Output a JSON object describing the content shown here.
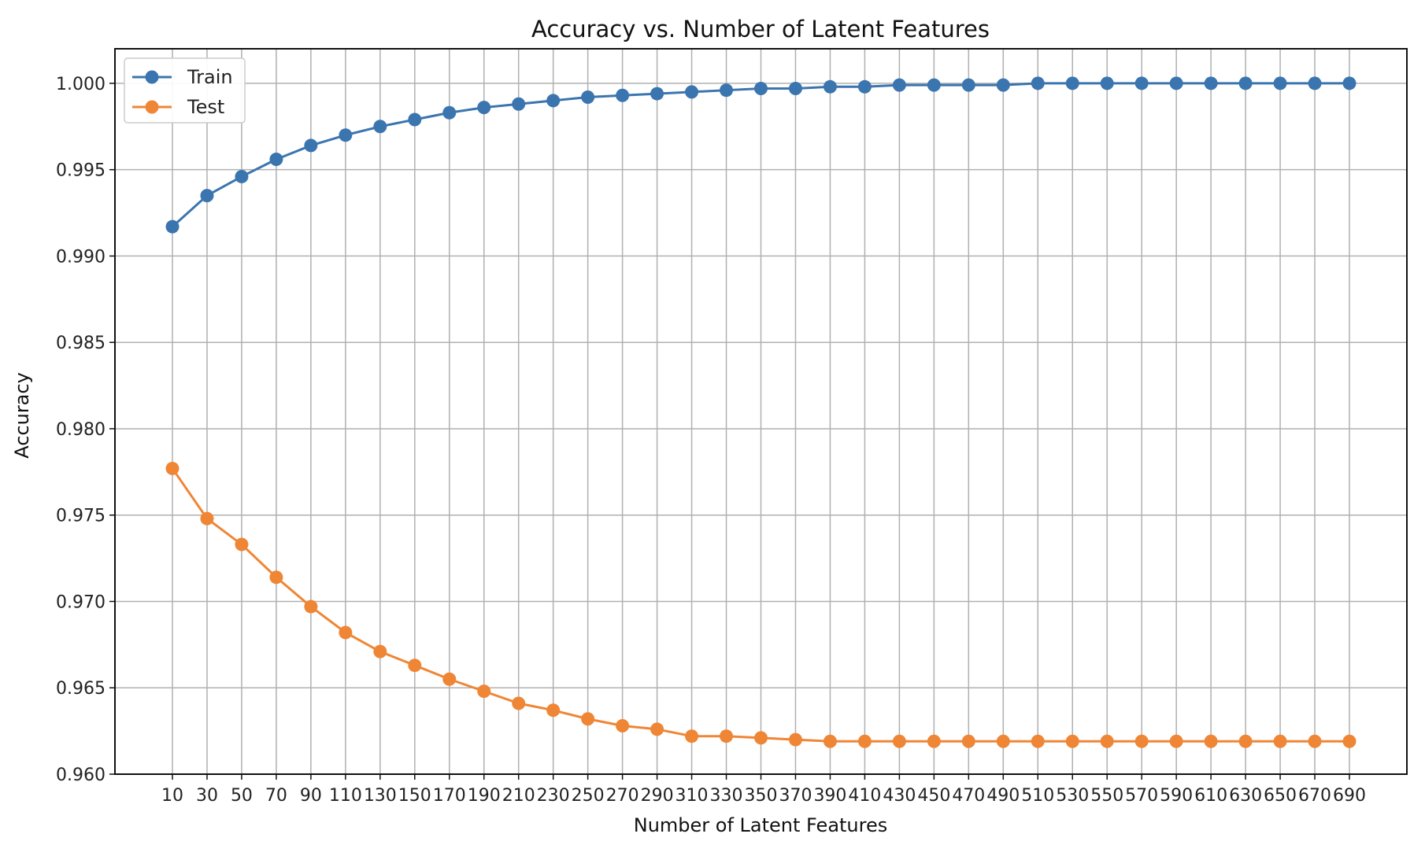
{
  "chart_data": {
    "type": "line",
    "title": "Accuracy vs. Number of Latent Features",
    "xlabel": "Number of Latent Features",
    "ylabel": "Accuracy",
    "x": [
      10,
      30,
      50,
      70,
      90,
      110,
      130,
      150,
      170,
      190,
      210,
      230,
      250,
      270,
      290,
      310,
      330,
      350,
      370,
      390,
      410,
      430,
      450,
      470,
      490,
      510,
      530,
      550,
      570,
      590,
      610,
      630,
      650,
      670,
      690
    ],
    "ylim": [
      0.96,
      1.002
    ],
    "yticks": [
      0.96,
      0.965,
      0.97,
      0.975,
      0.98,
      0.985,
      0.99,
      0.995,
      1.0
    ],
    "ytick_labels": [
      "0.960",
      "0.965",
      "0.970",
      "0.975",
      "0.980",
      "0.985",
      "0.990",
      "0.995",
      "1.000"
    ],
    "grid": true,
    "legend_position": "top-left",
    "series": [
      {
        "name": "Train",
        "color": "#3b75af",
        "values": [
          0.9917,
          0.9935,
          0.9946,
          0.9956,
          0.9964,
          0.997,
          0.9975,
          0.9979,
          0.9983,
          0.9986,
          0.9988,
          0.999,
          0.9992,
          0.9993,
          0.9994,
          0.9995,
          0.9996,
          0.9997,
          0.9997,
          0.9998,
          0.9998,
          0.9999,
          0.9999,
          0.9999,
          0.9999,
          1.0,
          1.0,
          1.0,
          1.0,
          1.0,
          1.0,
          1.0,
          1.0,
          1.0,
          1.0
        ]
      },
      {
        "name": "Test",
        "color": "#ef8636",
        "values": [
          0.9777,
          0.9748,
          0.9733,
          0.9714,
          0.9697,
          0.9682,
          0.9671,
          0.9663,
          0.9655,
          0.9648,
          0.9641,
          0.9637,
          0.9632,
          0.9628,
          0.9626,
          0.9622,
          0.9622,
          0.9621,
          0.962,
          0.9619,
          0.9619,
          0.9619,
          0.9619,
          0.9619,
          0.9619,
          0.9619,
          0.9619,
          0.9619,
          0.9619,
          0.9619,
          0.9619,
          0.9619,
          0.9619,
          0.9619,
          0.9619
        ]
      }
    ]
  }
}
